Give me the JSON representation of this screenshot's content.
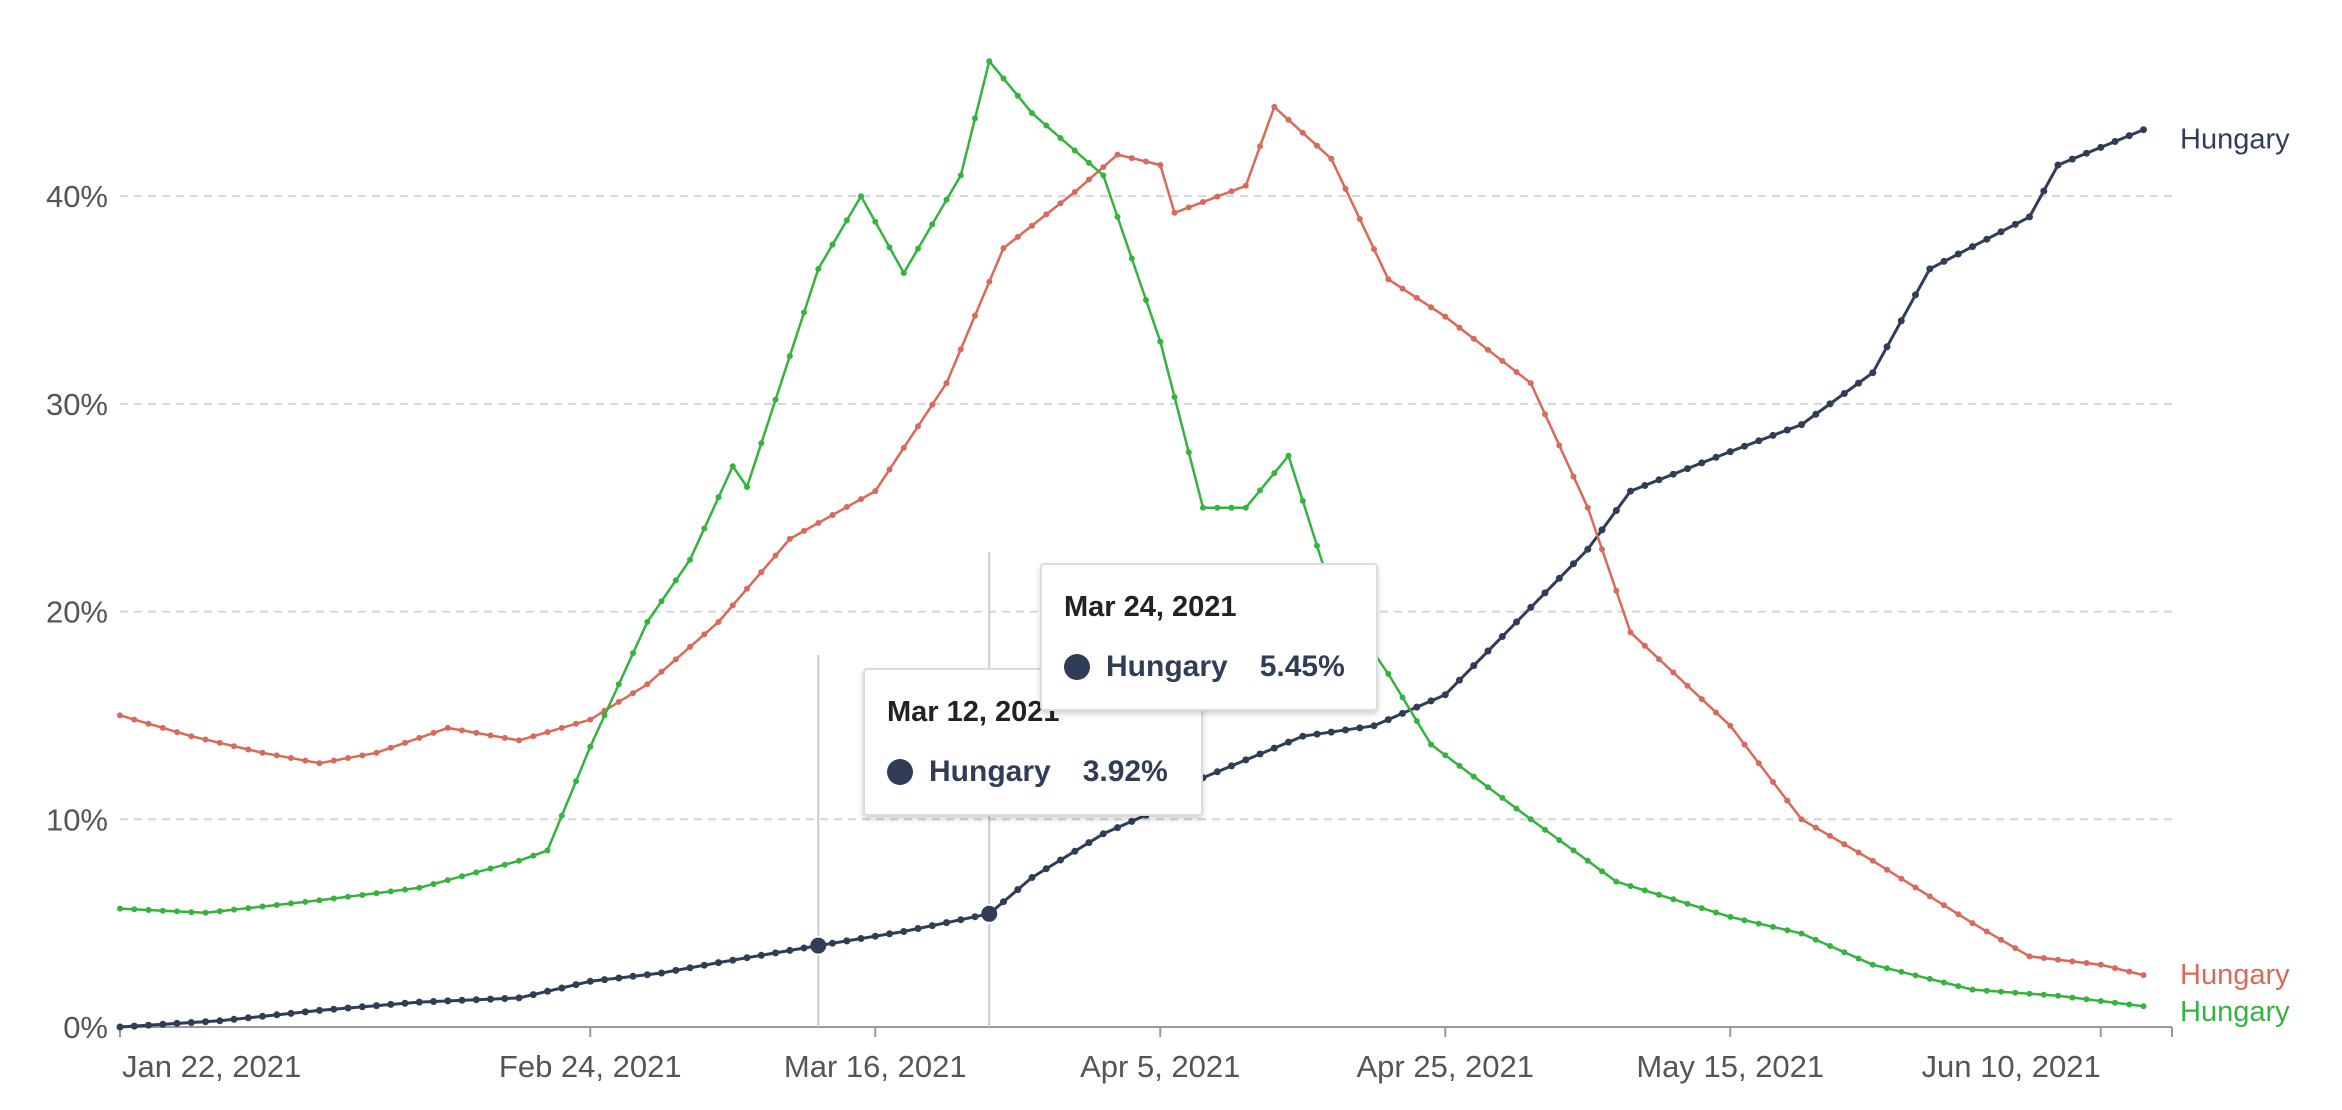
{
  "chart_data": {
    "type": "line",
    "x_start": "2021-01-22",
    "x_end": "2021-06-15",
    "x_ticks": [
      "Jan 22, 2021",
      "Feb 24, 2021",
      "Mar 16, 2021",
      "Apr 5, 2021",
      "Apr 25, 2021",
      "May 15, 2021",
      "Jun 10, 2021"
    ],
    "x_tick_dates": [
      "2021-01-22",
      "2021-02-24",
      "2021-03-16",
      "2021-04-05",
      "2021-04-25",
      "2021-05-15",
      "2021-06-10"
    ],
    "y_ticks": [
      "0%",
      "10%",
      "20%",
      "30%",
      "40%"
    ],
    "y_tick_values": [
      0,
      10,
      20,
      30,
      40
    ],
    "ylim": [
      0,
      48
    ],
    "grid": "horizontal dashed",
    "colors": {
      "dark": "#2f3d57",
      "red": "#d9695a",
      "green": "#34b33f"
    },
    "series": [
      {
        "name": "Hungary",
        "color": "#2f3d57",
        "points": [
          [
            "2021-01-22",
            0.0
          ],
          [
            "2021-01-29",
            0.3
          ],
          [
            "2021-02-05",
            0.8
          ],
          [
            "2021-02-12",
            1.2
          ],
          [
            "2021-02-19",
            1.4
          ],
          [
            "2021-02-24",
            2.2
          ],
          [
            "2021-03-01",
            2.6
          ],
          [
            "2021-03-05",
            3.1
          ],
          [
            "2021-03-12",
            3.92
          ],
          [
            "2021-03-18",
            4.6
          ],
          [
            "2021-03-24",
            5.45
          ],
          [
            "2021-03-27",
            7.2
          ],
          [
            "2021-04-01",
            9.3
          ],
          [
            "2021-04-05",
            10.5
          ],
          [
            "2021-04-08",
            12.0
          ],
          [
            "2021-04-15",
            14.0
          ],
          [
            "2021-04-20",
            14.5
          ],
          [
            "2021-04-25",
            16.0
          ],
          [
            "2021-04-30",
            19.5
          ],
          [
            "2021-05-05",
            23.0
          ],
          [
            "2021-05-08",
            25.8
          ],
          [
            "2021-05-15",
            27.7
          ],
          [
            "2021-05-20",
            29.0
          ],
          [
            "2021-05-25",
            31.5
          ],
          [
            "2021-05-29",
            36.5
          ],
          [
            "2021-06-05",
            39.0
          ],
          [
            "2021-06-07",
            41.5
          ],
          [
            "2021-06-13",
            43.2
          ]
        ]
      },
      {
        "name": "Hungary",
        "color": "#d9695a",
        "points": [
          [
            "2021-01-22",
            15.0
          ],
          [
            "2021-01-27",
            14.0
          ],
          [
            "2021-02-01",
            13.2
          ],
          [
            "2021-02-05",
            12.7
          ],
          [
            "2021-02-09",
            13.2
          ],
          [
            "2021-02-14",
            14.4
          ],
          [
            "2021-02-19",
            13.8
          ],
          [
            "2021-02-24",
            14.8
          ],
          [
            "2021-02-28",
            16.5
          ],
          [
            "2021-03-05",
            19.5
          ],
          [
            "2021-03-10",
            23.5
          ],
          [
            "2021-03-16",
            25.8
          ],
          [
            "2021-03-21",
            31.0
          ],
          [
            "2021-03-25",
            37.5
          ],
          [
            "2021-03-30",
            40.2
          ],
          [
            "2021-04-02",
            42.0
          ],
          [
            "2021-04-05",
            41.5
          ],
          [
            "2021-04-06",
            39.2
          ],
          [
            "2021-04-11",
            40.5
          ],
          [
            "2021-04-13",
            44.3
          ],
          [
            "2021-04-17",
            41.8
          ],
          [
            "2021-04-21",
            36.0
          ],
          [
            "2021-04-25",
            34.2
          ],
          [
            "2021-05-01",
            31.0
          ],
          [
            "2021-05-05",
            25.0
          ],
          [
            "2021-05-08",
            19.0
          ],
          [
            "2021-05-15",
            14.5
          ],
          [
            "2021-05-20",
            10.0
          ],
          [
            "2021-05-25",
            8.0
          ],
          [
            "2021-06-01",
            5.0
          ],
          [
            "2021-06-05",
            3.4
          ],
          [
            "2021-06-10",
            3.0
          ],
          [
            "2021-06-13",
            2.5
          ]
        ]
      },
      {
        "name": "Hungary",
        "color": "#34b33f",
        "points": [
          [
            "2021-01-22",
            5.7
          ],
          [
            "2021-01-28",
            5.5
          ],
          [
            "2021-02-05",
            6.1
          ],
          [
            "2021-02-12",
            6.7
          ],
          [
            "2021-02-19",
            8.0
          ],
          [
            "2021-02-21",
            8.5
          ],
          [
            "2021-02-24",
            13.5
          ],
          [
            "2021-02-28",
            19.5
          ],
          [
            "2021-03-03",
            22.5
          ],
          [
            "2021-03-06",
            27.0
          ],
          [
            "2021-03-07",
            26.0
          ],
          [
            "2021-03-12",
            36.5
          ],
          [
            "2021-03-15",
            40.0
          ],
          [
            "2021-03-18",
            36.3
          ],
          [
            "2021-03-22",
            41.0
          ],
          [
            "2021-03-24",
            46.5
          ],
          [
            "2021-03-27",
            44.0
          ],
          [
            "2021-04-01",
            41.0
          ],
          [
            "2021-04-05",
            33.0
          ],
          [
            "2021-04-08",
            25.0
          ],
          [
            "2021-04-11",
            25.0
          ],
          [
            "2021-04-14",
            27.5
          ],
          [
            "2021-04-17",
            21.0
          ],
          [
            "2021-04-21",
            17.0
          ],
          [
            "2021-04-24",
            13.6
          ],
          [
            "2021-05-01",
            10.0
          ],
          [
            "2021-05-07",
            7.0
          ],
          [
            "2021-05-15",
            5.3
          ],
          [
            "2021-05-20",
            4.5
          ],
          [
            "2021-05-25",
            3.0
          ],
          [
            "2021-06-01",
            1.8
          ],
          [
            "2021-06-07",
            1.5
          ],
          [
            "2021-06-13",
            1.0
          ]
        ]
      }
    ]
  },
  "tooltips": [
    {
      "date": "Mar 12, 2021",
      "series": "Hungary",
      "value": "3.92%"
    },
    {
      "date": "Mar 24, 2021",
      "series": "Hungary",
      "value": "5.45%"
    }
  ]
}
